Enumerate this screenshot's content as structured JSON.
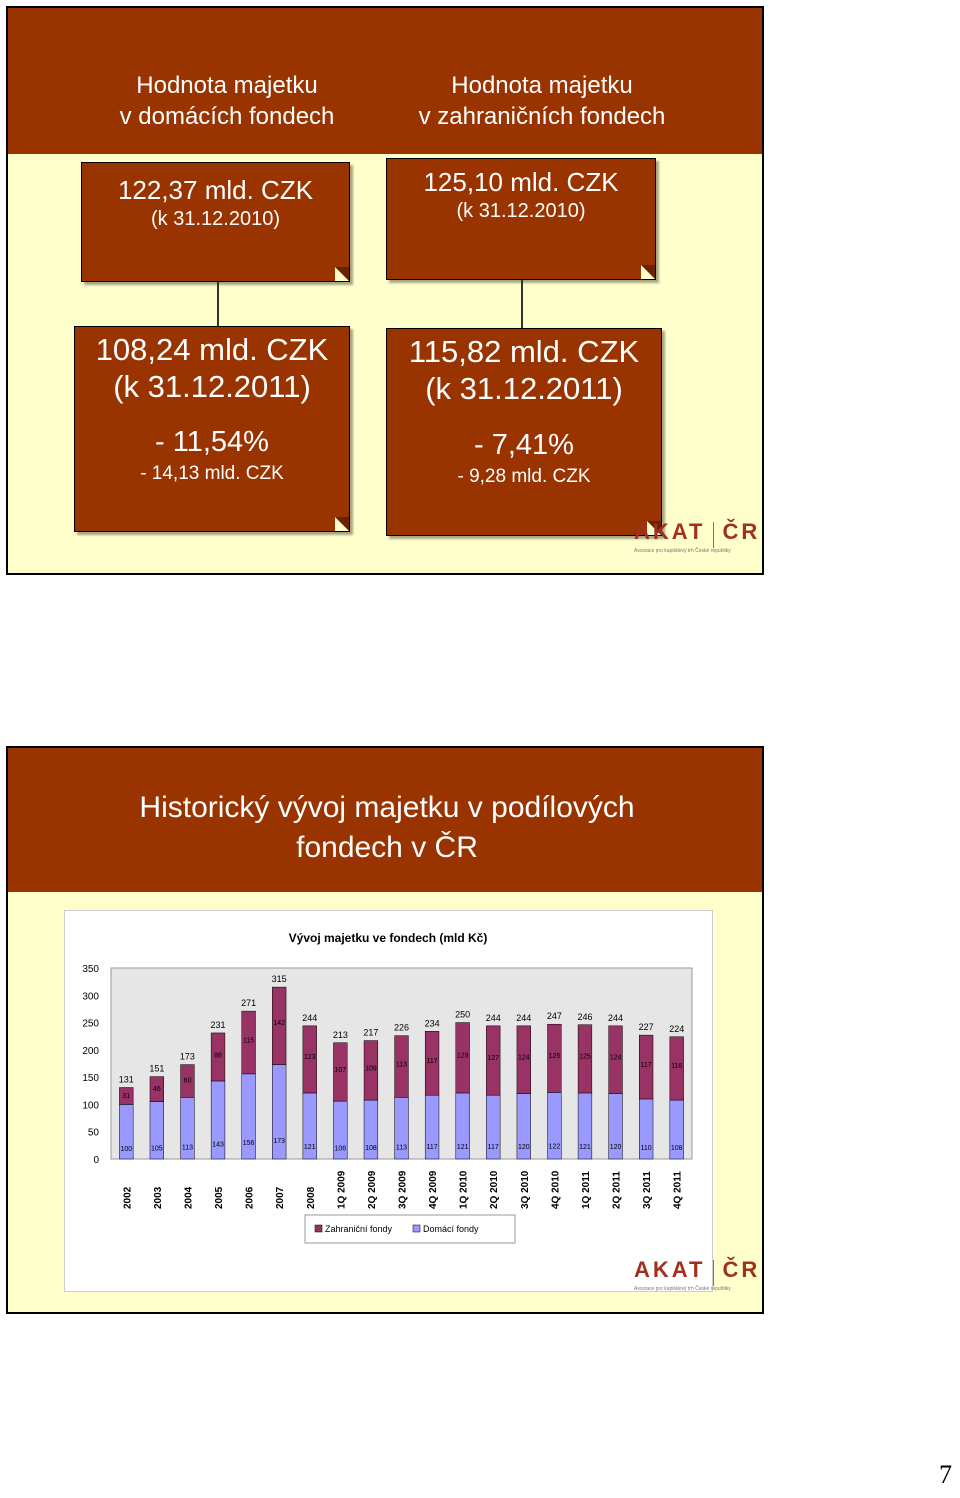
{
  "slide1": {
    "domestic_header": [
      "Hodnota majetku",
      "v domácích fondech"
    ],
    "foreign_header": [
      "Hodnota majetku",
      "v zahraničních fondech"
    ],
    "domestic_2010": {
      "value": "122,37 mld. CZK",
      "date": "(k 31.12.2010)"
    },
    "foreign_2010": {
      "value": "125,10 mld. CZK",
      "date": "(k 31.12.2010)"
    },
    "domestic_2011": {
      "value": "108,24 mld. CZK",
      "date": "(k 31.12.2011)",
      "change_pct": "- 11,54%",
      "change_abs": "- 14,13 mld. CZK"
    },
    "foreign_2011": {
      "value": "115,82 mld. CZK",
      "date": "(k 31.12.2011)",
      "change_pct": "- 7,41%",
      "change_abs": "- 9,28 mld. CZK"
    },
    "logo_word_left": "AKAT",
    "logo_word_right": "ČR",
    "logo_sub": "Asociace pro kapitálový trh České republiky"
  },
  "slide2": {
    "title": [
      "Historický vývoj majetku v podílových",
      "fondech v ČR"
    ],
    "logo_word_left": "AKAT",
    "logo_word_right": "ČR",
    "logo_sub": "Asociace pro kapitálový trh České republiky"
  },
  "page_number": "7",
  "colors": {
    "header": "#993300",
    "background": "#ffffcc",
    "foreign_series": "#993366",
    "domestic_series": "#9999ff"
  },
  "chart_data": {
    "type": "bar",
    "stacked": true,
    "title": "Vývoj majetku ve fondech (mld Kč)",
    "categories": [
      "2002",
      "2003",
      "2004",
      "2005",
      "2006",
      "2007",
      "2008",
      "1Q 2009",
      "2Q 2009",
      "3Q 2009",
      "4Q 2009",
      "1Q 2010",
      "2Q 2010",
      "3Q 2010",
      "4Q 2010",
      "1Q 2011",
      "2Q 2011",
      "3Q 2011",
      "4Q 2011"
    ],
    "series": [
      {
        "name": "Domácí fondy",
        "values": [
          100,
          105,
          113,
          143,
          156,
          173,
          121,
          106,
          108,
          113,
          117,
          121,
          117,
          120,
          122,
          121,
          120,
          110,
          108
        ],
        "color": "#9999ff"
      },
      {
        "name": "Zahraniční fondy",
        "values": [
          31,
          46,
          60,
          88,
          115,
          142,
          123,
          107,
          109,
          113,
          117,
          129,
          127,
          124,
          125,
          125,
          124,
          117,
          116
        ],
        "color": "#993366"
      }
    ],
    "totals": [
      131,
      151,
      173,
      231,
      271,
      315,
      244,
      213,
      217,
      226,
      234,
      250,
      244,
      244,
      247,
      246,
      244,
      227,
      224
    ],
    "ylim": [
      0,
      350
    ],
    "yticks": [
      0,
      50,
      100,
      150,
      200,
      250,
      300,
      350
    ],
    "legend": [
      "Zahraniční fondy",
      "Domácí fondy"
    ],
    "legend_position": "bottom",
    "grid": false
  }
}
